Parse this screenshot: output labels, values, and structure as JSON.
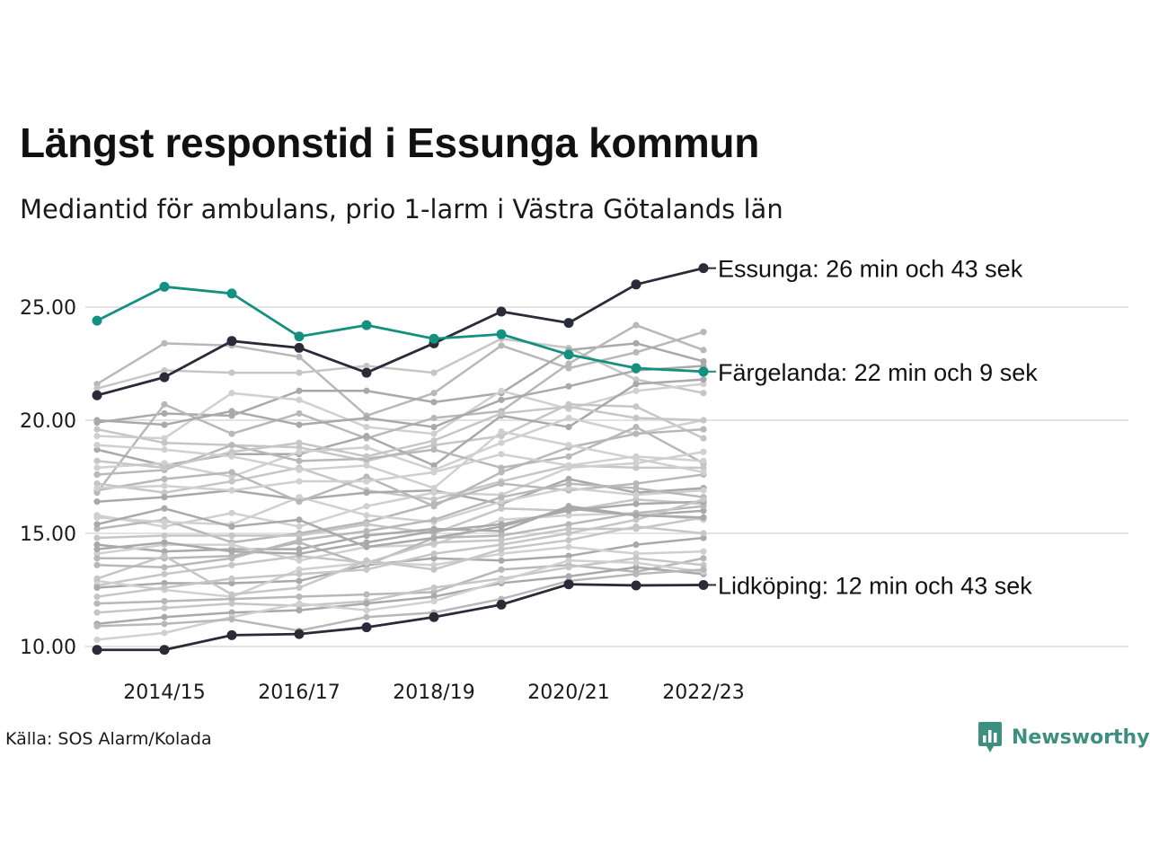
{
  "title": "Längst responstid i Essunga kommun",
  "subtitle": "Mediantid för ambulans, prio 1-larm i Västra Götalands län",
  "source": "Källa: SOS Alarm/Kolada",
  "brand": {
    "name": "Newsworthy",
    "icon": "newsworthy-logo-icon",
    "color": "#3d8f7f"
  },
  "colors": {
    "highlight_dark": "#2b2a38",
    "highlight_teal": "#13907f",
    "background_lines": "#bdbdbd",
    "grid": "#e3e3e3"
  },
  "chart_data": {
    "type": "line",
    "x": [
      "2013/14",
      "2014/15",
      "2015/16",
      "2016/17",
      "2017/18",
      "2018/19",
      "2019/20",
      "2020/21",
      "2021/22",
      "2022/23"
    ],
    "x_tick_labels": [
      "2014/15",
      "2016/17",
      "2018/19",
      "2020/21",
      "2022/23"
    ],
    "y_ticks": [
      "10.00",
      "15.00",
      "20.00",
      "25.00"
    ],
    "ylim": [
      9.5,
      27.5
    ],
    "grid": "horizontal",
    "highlighted": [
      {
        "name": "Essunga",
        "label": "Essunga: 26 min och 43 sek",
        "color": "#2b2a38",
        "values": [
          21.1,
          21.9,
          23.5,
          23.2,
          22.1,
          23.4,
          24.8,
          24.3,
          26.0,
          26.72
        ]
      },
      {
        "name": "Färgelanda",
        "label": "Färgelanda: 22 min och 9 sek",
        "color": "#13907f",
        "values": [
          24.4,
          25.9,
          25.6,
          23.7,
          24.2,
          23.6,
          23.8,
          22.9,
          22.3,
          22.15
        ]
      },
      {
        "name": "Lidköping",
        "label": "Lidköping: 12 min och 43 sek",
        "color": "#2b2a38",
        "values": [
          9.85,
          9.85,
          10.5,
          10.55,
          10.85,
          11.3,
          11.85,
          12.75,
          12.7,
          12.72
        ]
      }
    ],
    "series": [
      {
        "values": [
          21.6,
          23.4,
          23.3,
          22.8,
          20.2,
          21.2,
          23.3,
          22.3,
          23.0,
          23.9
        ]
      },
      {
        "values": [
          21.4,
          22.2,
          22.1,
          22.1,
          22.4,
          22.1,
          23.6,
          23.2,
          21.8,
          21.2
        ]
      },
      {
        "values": [
          19.9,
          20.3,
          20.2,
          21.3,
          21.3,
          20.8,
          21.2,
          23.1,
          23.4,
          22.6
        ]
      },
      {
        "values": [
          19.3,
          19.2,
          21.2,
          20.9,
          19.7,
          19.4,
          21.3,
          20.5,
          21.3,
          21.6
        ]
      },
      {
        "values": [
          16.8,
          20.7,
          19.4,
          20.3,
          19.2,
          20.1,
          20.4,
          22.5,
          24.2,
          23.1
        ]
      },
      {
        "values": [
          19.6,
          19.0,
          18.9,
          18.8,
          18.2,
          18.9,
          19.3,
          20.7,
          20.6,
          19.2
        ]
      },
      {
        "values": [
          18.7,
          18.0,
          18.5,
          18.5,
          19.3,
          18.0,
          20.2,
          19.7,
          21.6,
          21.8
        ]
      },
      {
        "values": [
          17.9,
          18.1,
          17.5,
          18.6,
          18.8,
          17.8,
          19.0,
          20.1,
          19.4,
          20.0
        ]
      },
      {
        "values": [
          17.6,
          17.8,
          18.9,
          18.2,
          18.3,
          18.7,
          17.9,
          18.4,
          19.7,
          18.1
        ]
      },
      {
        "values": [
          17.2,
          16.8,
          17.3,
          17.9,
          16.9,
          16.5,
          17.3,
          18.0,
          17.9,
          17.9
        ]
      },
      {
        "values": [
          16.4,
          16.6,
          16.9,
          16.5,
          16.8,
          16.9,
          16.3,
          17.4,
          16.8,
          17.0
        ]
      },
      {
        "values": [
          15.8,
          15.3,
          15.9,
          15.3,
          16.2,
          16.8,
          16.7,
          17.9,
          18.1,
          18.6
        ]
      },
      {
        "values": [
          15.2,
          15.6,
          14.6,
          15.0,
          15.5,
          16.3,
          17.2,
          16.9,
          17.2,
          17.6
        ]
      },
      {
        "values": [
          14.8,
          14.9,
          14.9,
          14.9,
          15.4,
          15.0,
          16.1,
          16.0,
          16.5,
          16.3
        ]
      },
      {
        "values": [
          14.5,
          14.2,
          14.3,
          14.3,
          14.9,
          15.2,
          15.1,
          16.2,
          15.8,
          16.0
        ]
      },
      {
        "values": [
          14.1,
          14.5,
          14.5,
          13.8,
          14.4,
          14.5,
          15.6,
          15.8,
          15.9,
          15.6
        ]
      },
      {
        "values": [
          13.9,
          13.9,
          14.0,
          14.6,
          13.6,
          14.8,
          14.9,
          15.4,
          15.9,
          16.2
        ]
      },
      {
        "values": [
          12.7,
          13.2,
          13.6,
          14.0,
          13.7,
          14.6,
          14.7,
          15.2,
          15.2,
          15.7
        ]
      },
      {
        "values": [
          12.6,
          12.8,
          12.8,
          12.9,
          13.6,
          13.9,
          13.8,
          14.0,
          14.5,
          14.8
        ]
      },
      {
        "values": [
          12.9,
          12.5,
          12.2,
          13.4,
          13.7,
          13.6,
          14.1,
          14.4,
          14.1,
          14.2
        ]
      },
      {
        "values": [
          11.9,
          12.0,
          12.1,
          12.2,
          12.3,
          12.4,
          13.4,
          13.6,
          13.3,
          13.9
        ]
      },
      {
        "values": [
          11.5,
          11.7,
          11.9,
          11.8,
          12.0,
          12.6,
          13.0,
          13.5,
          13.9,
          13.6
        ]
      },
      {
        "values": [
          11.0,
          11.3,
          11.5,
          11.6,
          11.9,
          12.2,
          12.8,
          13.1,
          13.5,
          13.2
        ]
      },
      {
        "values": [
          10.3,
          10.6,
          11.3,
          11.9,
          11.6,
          12.0,
          12.9,
          13.8,
          13.7,
          13.3
        ]
      },
      {
        "values": [
          10.9,
          11.0,
          11.2,
          10.7,
          11.3,
          11.5,
          12.1,
          12.9,
          13.2,
          13.4
        ]
      },
      {
        "values": [
          13.0,
          14.0,
          12.3,
          12.6,
          13.8,
          13.4,
          14.3,
          14.7,
          15.3,
          15.0
        ]
      },
      {
        "values": [
          14.3,
          14.6,
          14.2,
          14.1,
          14.6,
          15.1,
          15.4,
          16.0,
          16.3,
          16.4
        ]
      },
      {
        "values": [
          15.7,
          15.5,
          15.4,
          16.6,
          15.8,
          15.5,
          16.4,
          17.0,
          16.7,
          16.9
        ]
      },
      {
        "values": [
          16.9,
          17.4,
          17.7,
          16.4,
          17.5,
          16.2,
          17.7,
          18.8,
          19.4,
          19.6
        ]
      },
      {
        "values": [
          18.2,
          17.9,
          18.6,
          19.0,
          18.4,
          19.1,
          20.3,
          20.6,
          20.1,
          20.0
        ]
      },
      {
        "values": [
          20.0,
          19.8,
          20.4,
          19.8,
          20.1,
          19.7,
          20.9,
          21.5,
          22.2,
          22.4
        ]
      },
      {
        "values": [
          17.0,
          17.1,
          16.9,
          17.3,
          17.3,
          17.7,
          18.5,
          18.0,
          18.4,
          18.2
        ]
      },
      {
        "values": [
          13.6,
          13.5,
          13.9,
          14.7,
          15.1,
          15.6,
          16.6,
          17.2,
          17.0,
          16.6
        ]
      },
      {
        "values": [
          12.2,
          12.6,
          13.0,
          13.2,
          13.4,
          14.1,
          14.5,
          15.0,
          15.6,
          16.5
        ]
      },
      {
        "values": [
          15.4,
          16.1,
          15.3,
          15.6,
          14.4,
          14.8,
          15.3,
          16.1,
          15.8,
          15.7
        ]
      },
      {
        "values": [
          18.9,
          18.7,
          18.4,
          17.8,
          18.0,
          17.0,
          19.5,
          18.9,
          18.3,
          17.7
        ]
      }
    ]
  }
}
